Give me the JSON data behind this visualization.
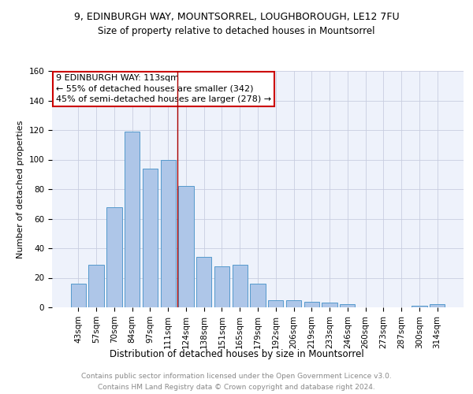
{
  "title1": "9, EDINBURGH WAY, MOUNTSORREL, LOUGHBOROUGH, LE12 7FU",
  "title2": "Size of property relative to detached houses in Mountsorrel",
  "xlabel": "Distribution of detached houses by size in Mountsorrel",
  "ylabel": "Number of detached properties",
  "categories": [
    "43sqm",
    "57sqm",
    "70sqm",
    "84sqm",
    "97sqm",
    "111sqm",
    "124sqm",
    "138sqm",
    "151sqm",
    "165sqm",
    "179sqm",
    "192sqm",
    "206sqm",
    "219sqm",
    "233sqm",
    "246sqm",
    "260sqm",
    "273sqm",
    "287sqm",
    "300sqm",
    "314sqm"
  ],
  "values": [
    16,
    29,
    68,
    119,
    94,
    100,
    82,
    34,
    28,
    29,
    16,
    5,
    5,
    4,
    3,
    2,
    0,
    0,
    0,
    1,
    2
  ],
  "bar_color": "#aec6e8",
  "bar_edge_color": "#5599cc",
  "vline_x": 5.5,
  "vline_color": "#aa0000",
  "annotation_lines": [
    "9 EDINBURGH WAY: 113sqm",
    "← 55% of detached houses are smaller (342)",
    "45% of semi-detached houses are larger (278) →"
  ],
  "annotation_box_color": "white",
  "annotation_box_edge": "#cc0000",
  "ylim": [
    0,
    160
  ],
  "yticks": [
    0,
    20,
    40,
    60,
    80,
    100,
    120,
    140,
    160
  ],
  "footer1": "Contains HM Land Registry data © Crown copyright and database right 2024.",
  "footer2": "Contains public sector information licensed under the Open Government Licence v3.0.",
  "background_color": "#eef2fb",
  "grid_color": "#c8cde0",
  "title1_fontsize": 9,
  "title2_fontsize": 8.5,
  "xlabel_fontsize": 8.5,
  "ylabel_fontsize": 8,
  "tick_fontsize": 7.5,
  "footer_fontsize": 6.5,
  "annotation_fontsize": 8
}
